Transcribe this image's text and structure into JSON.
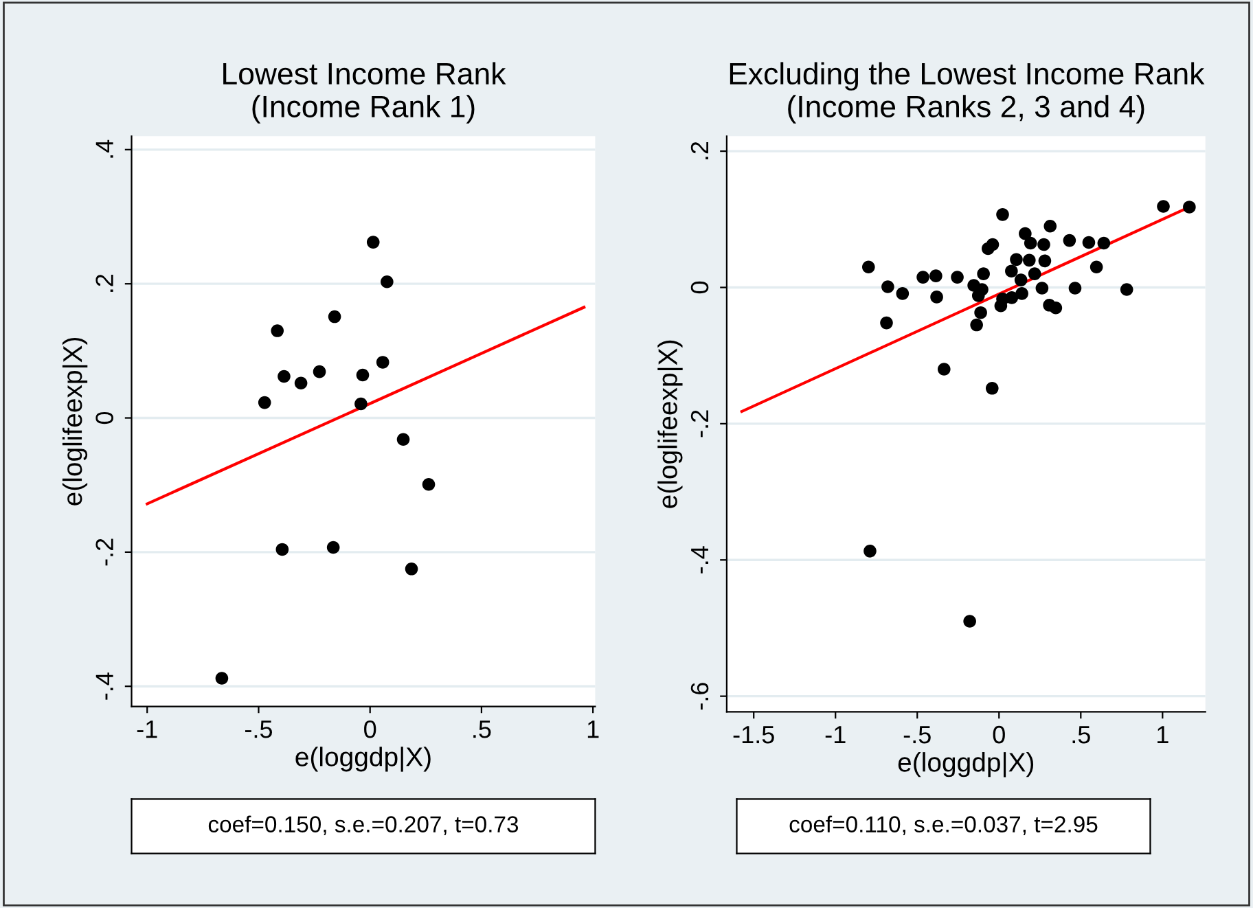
{
  "chart_data": [
    {
      "type": "scatter",
      "title": "Lowest Income Rank\n(Income Rank 1)",
      "xlabel": "e(loggdp|X)",
      "ylabel": "e(loglifeexp|X)",
      "series": [
        {
          "color": "#000000",
          "marker": "circle",
          "x": [
            0.014,
            0.076,
            -0.159,
            -0.416,
            -0.386,
            -0.31,
            -0.227,
            -0.033,
            0.057,
            -0.473,
            -0.041,
            0.149,
            0.263,
            -0.394,
            -0.165,
            0.186,
            -0.665
          ],
          "values": [
            0.262,
            0.203,
            0.151,
            0.13,
            0.062,
            0.052,
            0.069,
            0.064,
            0.083,
            0.023,
            0.021,
            -0.032,
            -0.099,
            -0.196,
            -0.193,
            -0.225,
            -0.388
          ]
        },
        {
          "type": "line",
          "marker": "none",
          "color": "#ff0000",
          "x": [
            -1,
            0.96
          ],
          "values": [
            -0.128,
            0.165
          ]
        }
      ],
      "xlim": [
        -1.07,
        1.01
      ],
      "ylim": [
        -0.43,
        0.42
      ],
      "xticks": [
        {
          "value": -1,
          "label": "-1"
        },
        {
          "value": -0.5,
          "label": "-.5"
        },
        0,
        {
          "value": 0.5,
          "label": ".5"
        },
        1
      ],
      "yticks": [
        {
          "value": -0.4,
          "label": "-.4"
        },
        {
          "value": -0.2,
          "label": "-.2"
        },
        0,
        {
          "value": 0.2,
          "label": ".2"
        },
        {
          "value": 0.4,
          "label": ".4"
        }
      ],
      "grid": "y",
      "annotations": [
        "coef=0.150, s.e.=0.207, t=0.73"
      ]
    },
    {
      "type": "scatter",
      "title": "Excluding the Lowest Income Rank\n(Income Ranks 2, 3 and 4)",
      "xlabel": "e(loggdp|X)",
      "ylabel": "e(loglifeexp|X)",
      "series": [
        {
          "color": "#000000",
          "marker": "circle",
          "x": [
            -0.798,
            -0.68,
            -0.59,
            -0.688,
            -0.465,
            -0.386,
            -0.381,
            -0.255,
            -0.336,
            -0.789,
            -0.179,
            -0.042,
            0.022,
            -0.067,
            -0.039,
            -0.095,
            -0.154,
            -0.104,
            -0.126,
            -0.112,
            -0.137,
            0.011,
            0.022,
            0.078,
            0.076,
            0.106,
            0.134,
            0.14,
            0.16,
            0.185,
            0.193,
            0.218,
            0.274,
            0.28,
            0.263,
            0.313,
            0.308,
            0.347,
            0.431,
            0.465,
            0.549,
            0.596,
            0.641,
            0.781,
            1.005,
            1.164
          ],
          "values": [
            0.03,
            0.001,
            -0.009,
            -0.052,
            0.015,
            0.017,
            -0.014,
            0.015,
            -0.12,
            -0.387,
            -0.49,
            -0.148,
            0.107,
            0.057,
            0.063,
            0.02,
            0.003,
            -0.003,
            -0.012,
            -0.037,
            -0.055,
            -0.027,
            -0.017,
            -0.015,
            0.024,
            0.041,
            0.011,
            -0.009,
            0.079,
            0.04,
            0.065,
            0.02,
            0.063,
            0.039,
            -0.001,
            0.09,
            -0.026,
            -0.03,
            0.069,
            -0.001,
            0.066,
            0.03,
            0.065,
            -0.003,
            0.119,
            0.118
          ]
        },
        {
          "type": "line",
          "marker": "none",
          "color": "#ff0000",
          "x": [
            -1.573,
            1.164
          ],
          "values": [
            -0.182,
            0.118
          ]
        }
      ],
      "xlim": [
        -1.665,
        1.262
      ],
      "ylim": [
        -0.623,
        0.222
      ],
      "xticks": [
        {
          "value": -1.5,
          "label": "-1.5"
        },
        {
          "value": -1,
          "label": "-1"
        },
        {
          "value": -0.5,
          "label": "-.5"
        },
        0,
        {
          "value": 0.5,
          "label": ".5"
        },
        1
      ],
      "yticks": [
        {
          "value": -0.6,
          "label": "-.6"
        },
        {
          "value": -0.4,
          "label": "-.4"
        },
        {
          "value": -0.2,
          "label": "-.2"
        },
        0,
        {
          "value": 0.2,
          "label": ".2"
        }
      ],
      "grid": "y",
      "annotations": [
        "coef=0.110, s.e.=0.037, t=2.95"
      ]
    }
  ]
}
